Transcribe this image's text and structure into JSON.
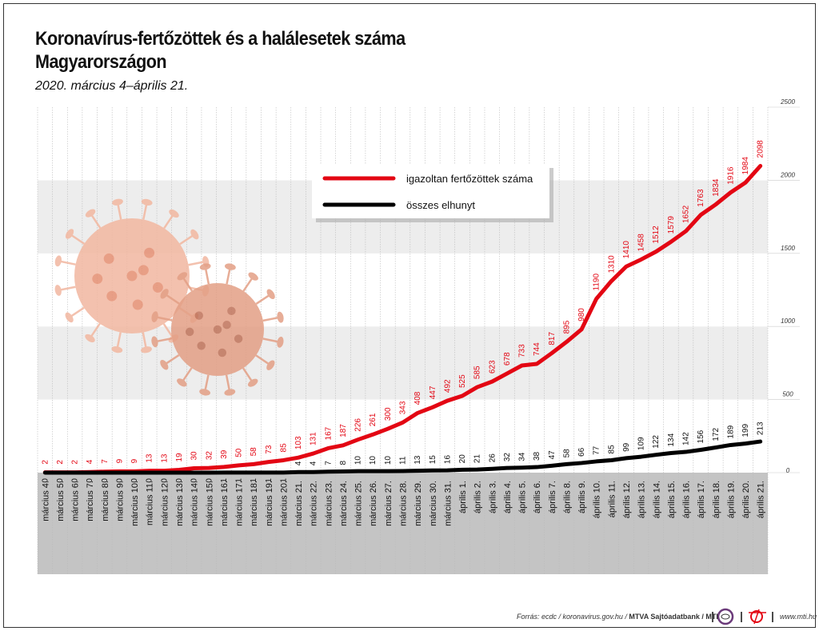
{
  "chart_data": {
    "type": "line",
    "title": "Koronavírus-fertőzöttek és a halálesetek száma Magyarországon",
    "subtitle": "2020. március 4–április 21.",
    "ylim": [
      0,
      2500
    ],
    "yticks": [
      0,
      500,
      1000,
      1500,
      2000,
      2500
    ],
    "grid": true,
    "legend_position": "top-center",
    "categories": [
      "március 4.",
      "március 5.",
      "március 6.",
      "március 7.",
      "március 8.",
      "március 9.",
      "március 10.",
      "március 11.",
      "március 12.",
      "március 13.",
      "március 14.",
      "március 15.",
      "március 16.",
      "március 17.",
      "március 18.",
      "március 19.",
      "március 20.",
      "március 21.",
      "március 22.",
      "március 23.",
      "március 24.",
      "március 25.",
      "március 26.",
      "március 27.",
      "március 28.",
      "március 29.",
      "március 30.",
      "március 31.",
      "április 1.",
      "április 2.",
      "április 3.",
      "április 4.",
      "április 5.",
      "április 6.",
      "április 7.",
      "április 8.",
      "április 9.",
      "április 10.",
      "április 11.",
      "április 12.",
      "április 13.",
      "április 14.",
      "április 15.",
      "április 16.",
      "április 17.",
      "április 18.",
      "április 19.",
      "április 20.",
      "április 21."
    ],
    "series": [
      {
        "name": "igazoltan fertőzöttek száma",
        "color": "#e30613",
        "values": [
          2,
          2,
          2,
          4,
          7,
          9,
          9,
          13,
          13,
          19,
          30,
          32,
          39,
          50,
          58,
          73,
          85,
          103,
          131,
          167,
          187,
          226,
          261,
          300,
          343,
          408,
          447,
          492,
          525,
          585,
          623,
          678,
          733,
          744,
          817,
          895,
          980,
          1190,
          1310,
          1410,
          1458,
          1512,
          1579,
          1652,
          1763,
          1834,
          1916,
          1984,
          2098
        ]
      },
      {
        "name": "összes elhunyt",
        "color": "#000000",
        "values": [
          0,
          0,
          0,
          0,
          0,
          0,
          0,
          0,
          0,
          0,
          0,
          0,
          1,
          1,
          1,
          1,
          1,
          4,
          4,
          7,
          8,
          10,
          10,
          10,
          11,
          13,
          15,
          16,
          20,
          21,
          26,
          32,
          34,
          38,
          47,
          58,
          66,
          77,
          85,
          99,
          109,
          122,
          134,
          142,
          156,
          172,
          189,
          199,
          213
        ]
      }
    ]
  },
  "footer": {
    "source_prefix": "Forrás: ecdc / koronavirus.gov.hu / ",
    "source_bold": "MTVA Sajtóadatbank / MTI",
    "website": "www.mti.hu",
    "logos": [
      "MTVA",
      "MTI"
    ]
  }
}
